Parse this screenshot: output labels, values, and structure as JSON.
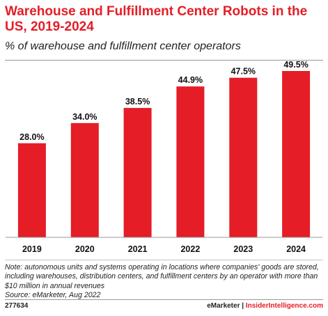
{
  "header": {
    "title": "Warehouse and Fulfillment Center Robots in the US, 2019-2024",
    "subtitle": "% of warehouse and fulfillment center operators"
  },
  "chart_data": {
    "type": "bar",
    "categories": [
      "2019",
      "2020",
      "2021",
      "2022",
      "2023",
      "2024"
    ],
    "values": [
      28.0,
      34.0,
      38.5,
      44.9,
      47.5,
      49.5
    ],
    "data_labels": [
      "28.0%",
      "34.0%",
      "38.5%",
      "44.9%",
      "47.5%",
      "49.5%"
    ],
    "title": "Warehouse and Fulfillment Center Robots in the US, 2019-2024",
    "ylabel": "% of warehouse and fulfillment center operators",
    "ylim": [
      0,
      49.5
    ],
    "grid": false,
    "bar_color": "#e51d26"
  },
  "footer": {
    "note": "Note: autonomous units and systems operating in locations where companies' goods are stored, including warehouses, distribution centers, and fulfillment centers by an operator with more than $10 million in annual revenues",
    "source": "Source: eMarketer, Aug 2022",
    "chart_id": "277634",
    "brand_left": "eMarketer",
    "brand_sep": " | ",
    "brand_right": "InsiderIntelligence.com"
  }
}
